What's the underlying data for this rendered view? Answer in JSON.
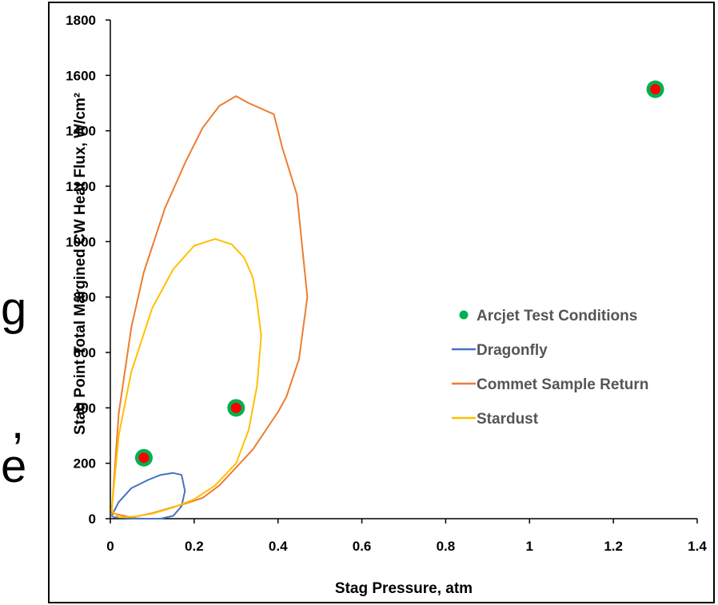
{
  "background_fragments": [
    "g",
    ",",
    "e"
  ],
  "chart_data": {
    "type": "scatter",
    "title": "",
    "xlabel": "Stag Pressure, atm",
    "ylabel": "Stag Point Total Margined CW Heat Flux, W/cm²",
    "xlim": [
      0,
      1.4
    ],
    "ylim": [
      0,
      1800
    ],
    "x_ticks": [
      0,
      0.2,
      0.4,
      0.6,
      0.8,
      1,
      1.2,
      1.4
    ],
    "x_tick_labels": [
      "0",
      "0.2",
      "0.4",
      "0.6",
      "0.8",
      "1",
      "1.2",
      "1.4"
    ],
    "y_ticks": [
      0,
      200,
      400,
      600,
      800,
      1000,
      1200,
      1400,
      1600,
      1800
    ],
    "y_tick_labels": [
      "0",
      "200",
      "400",
      "600",
      "800",
      "1000",
      "1200",
      "1400",
      "1600",
      "1800"
    ],
    "grid": false,
    "legend_position": "right",
    "series": [
      {
        "name": "Arcjet Test Conditions",
        "kind": "points",
        "color": "#00b050",
        "inner_color": "#ff0000",
        "points": [
          [
            0.08,
            220
          ],
          [
            0.3,
            400
          ],
          [
            1.3,
            1550
          ]
        ]
      },
      {
        "name": "Dragonfly",
        "kind": "closed-curve",
        "color": "#4472c4",
        "points": [
          [
            0.003,
            10
          ],
          [
            0.02,
            60
          ],
          [
            0.05,
            110
          ],
          [
            0.09,
            140
          ],
          [
            0.12,
            158
          ],
          [
            0.15,
            165
          ],
          [
            0.17,
            158
          ],
          [
            0.178,
            100
          ],
          [
            0.17,
            45
          ],
          [
            0.15,
            10
          ],
          [
            0.12,
            0
          ],
          [
            0.08,
            0
          ],
          [
            0.04,
            2
          ],
          [
            0.01,
            5
          ],
          [
            0.003,
            10
          ]
        ]
      },
      {
        "name": "Commet Sample Return",
        "kind": "closed-curve",
        "color": "#ed7d31",
        "points": [
          [
            0.003,
            20
          ],
          [
            0.02,
            380
          ],
          [
            0.05,
            690
          ],
          [
            0.08,
            890
          ],
          [
            0.13,
            1120
          ],
          [
            0.18,
            1290
          ],
          [
            0.22,
            1410
          ],
          [
            0.26,
            1490
          ],
          [
            0.3,
            1525
          ],
          [
            0.33,
            1500
          ],
          [
            0.39,
            1460
          ],
          [
            0.41,
            1340
          ],
          [
            0.445,
            1170
          ],
          [
            0.47,
            800
          ],
          [
            0.45,
            575
          ],
          [
            0.42,
            440
          ],
          [
            0.4,
            385
          ],
          [
            0.34,
            250
          ],
          [
            0.3,
            185
          ],
          [
            0.26,
            120
          ],
          [
            0.22,
            75
          ],
          [
            0.18,
            55
          ],
          [
            0.1,
            20
          ],
          [
            0.05,
            5
          ],
          [
            0.003,
            20
          ]
        ]
      },
      {
        "name": "Stardust",
        "kind": "closed-curve",
        "color": "#ffc000",
        "points": [
          [
            0.003,
            30
          ],
          [
            0.02,
            300
          ],
          [
            0.05,
            530
          ],
          [
            0.1,
            760
          ],
          [
            0.15,
            900
          ],
          [
            0.2,
            985
          ],
          [
            0.25,
            1010
          ],
          [
            0.29,
            990
          ],
          [
            0.32,
            940
          ],
          [
            0.34,
            870
          ],
          [
            0.35,
            780
          ],
          [
            0.36,
            660
          ],
          [
            0.35,
            480
          ],
          [
            0.33,
            320
          ],
          [
            0.3,
            200
          ],
          [
            0.25,
            120
          ],
          [
            0.2,
            70
          ],
          [
            0.15,
            40
          ],
          [
            0.1,
            18
          ],
          [
            0.06,
            8
          ],
          [
            0.02,
            5
          ],
          [
            0.003,
            30
          ]
        ]
      }
    ]
  }
}
